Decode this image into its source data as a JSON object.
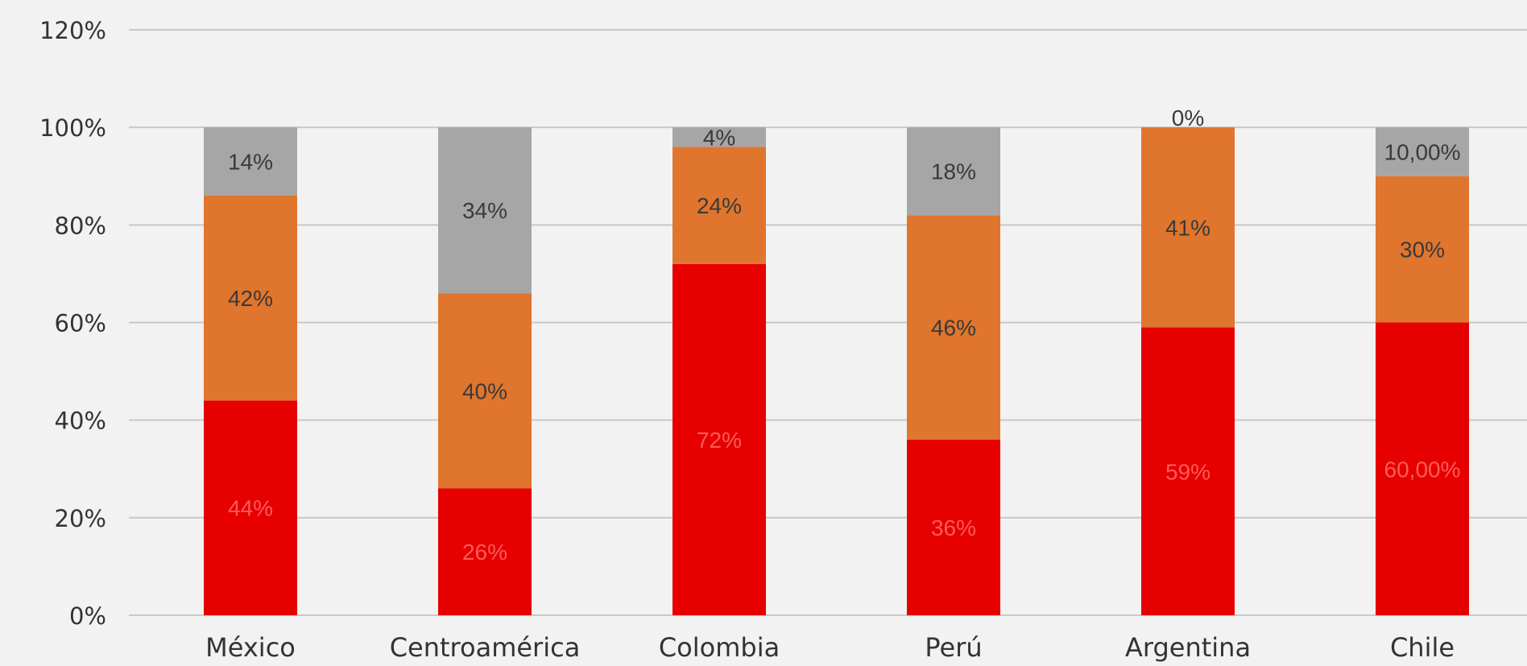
{
  "chart_data": {
    "type": "bar",
    "stacked": true,
    "categories": [
      "México",
      "Centroamérica",
      "Colombia",
      "Perú",
      "Argentina",
      "Chile"
    ],
    "series": [
      {
        "color": "#e60000",
        "values": [
          44,
          26,
          72,
          36,
          59,
          60
        ],
        "labels": [
          "44%",
          "26%",
          "72%",
          "36%",
          "59%",
          "60,00%"
        ]
      },
      {
        "color": "#e0752d",
        "values": [
          42,
          40,
          24,
          46,
          41,
          30
        ],
        "labels": [
          "42%",
          "40%",
          "24%",
          "46%",
          "41%",
          "30%"
        ]
      },
      {
        "color": "#a6a6a6",
        "values": [
          14,
          34,
          4,
          18,
          0,
          10
        ],
        "labels": [
          "14%",
          "34%",
          "4%",
          "18%",
          "0%",
          "10,00%"
        ]
      }
    ],
    "yticks": [
      "0%",
      "20%",
      "40%",
      "60%",
      "80%",
      "100%",
      "120%"
    ],
    "ylim": [
      0,
      120
    ],
    "grid": true,
    "legend": "none"
  }
}
